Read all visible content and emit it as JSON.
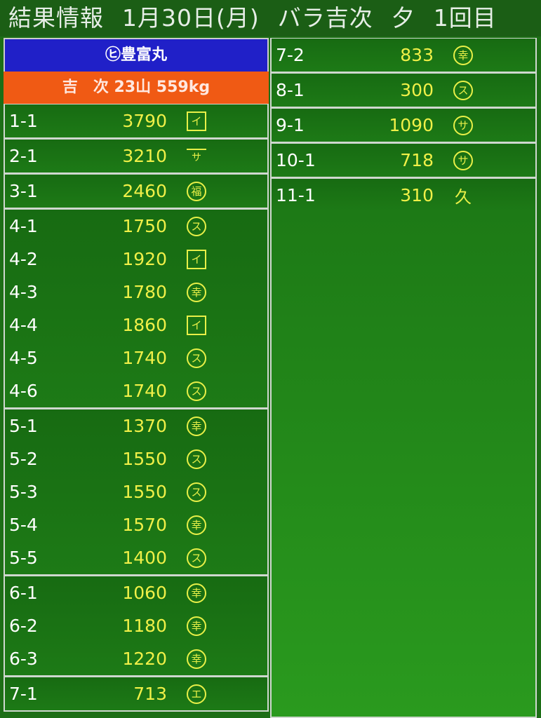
{
  "header": {
    "title": "結果情報",
    "date": "1月30日(月)",
    "category": "バラ吉次",
    "session": "夕",
    "round": "1回目"
  },
  "vessel": {
    "name": "㋪豊富丸",
    "summary": "吉　次 23山 559kg"
  },
  "left_groups": [
    [
      {
        "lot": "1-1",
        "price": "3790",
        "mark": "イ",
        "style": "box"
      }
    ],
    [
      {
        "lot": "2-1",
        "price": "3210",
        "mark": "サ",
        "style": "bar"
      }
    ],
    [
      {
        "lot": "3-1",
        "price": "2460",
        "mark": "福",
        "style": "circle"
      }
    ],
    [
      {
        "lot": "4-1",
        "price": "1750",
        "mark": "ス",
        "style": "circle"
      },
      {
        "lot": "4-2",
        "price": "1920",
        "mark": "イ",
        "style": "box"
      },
      {
        "lot": "4-3",
        "price": "1780",
        "mark": "幸",
        "style": "circle"
      },
      {
        "lot": "4-4",
        "price": "1860",
        "mark": "イ",
        "style": "box"
      },
      {
        "lot": "4-5",
        "price": "1740",
        "mark": "ス",
        "style": "circle"
      },
      {
        "lot": "4-6",
        "price": "1740",
        "mark": "ス",
        "style": "circle"
      }
    ],
    [
      {
        "lot": "5-1",
        "price": "1370",
        "mark": "幸",
        "style": "circle"
      },
      {
        "lot": "5-2",
        "price": "1550",
        "mark": "ス",
        "style": "circle"
      },
      {
        "lot": "5-3",
        "price": "1550",
        "mark": "ス",
        "style": "circle"
      },
      {
        "lot": "5-4",
        "price": "1570",
        "mark": "幸",
        "style": "circle"
      },
      {
        "lot": "5-5",
        "price": "1400",
        "mark": "ス",
        "style": "circle"
      }
    ],
    [
      {
        "lot": "6-1",
        "price": "1060",
        "mark": "幸",
        "style": "circle"
      },
      {
        "lot": "6-2",
        "price": "1180",
        "mark": "幸",
        "style": "circle"
      },
      {
        "lot": "6-3",
        "price": "1220",
        "mark": "幸",
        "style": "circle"
      }
    ],
    [
      {
        "lot": "7-1",
        "price": "713",
        "mark": "エ",
        "style": "circle"
      }
    ]
  ],
  "right_groups": [
    [
      {
        "lot": "7-2",
        "price": "833",
        "mark": "幸",
        "style": "circle"
      }
    ],
    [
      {
        "lot": "8-1",
        "price": "300",
        "mark": "ス",
        "style": "circle"
      }
    ],
    [
      {
        "lot": "9-1",
        "price": "1090",
        "mark": "サ",
        "style": "circle"
      }
    ],
    [
      {
        "lot": "10-1",
        "price": "718",
        "mark": "サ",
        "style": "circle"
      }
    ],
    [
      {
        "lot": "11-1",
        "price": "310",
        "mark": "久",
        "style": "plain"
      }
    ]
  ]
}
